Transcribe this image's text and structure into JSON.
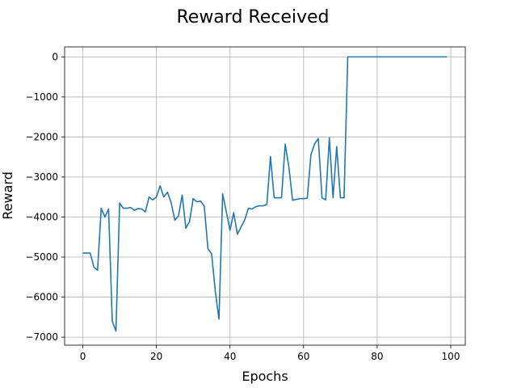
{
  "chart_data": {
    "type": "line",
    "title": "Reward Received",
    "xlabel": "Epochs",
    "ylabel": "Reward",
    "xlim": [
      -4.95,
      103.95
    ],
    "ylim": [
      -7200,
      250
    ],
    "xticks": [
      0,
      20,
      40,
      60,
      80,
      100
    ],
    "yticks": [
      0,
      -1000,
      -2000,
      -3000,
      -4000,
      -5000,
      -6000,
      -7000
    ],
    "xtick_labels": [
      "0",
      "20",
      "40",
      "60",
      "80",
      "100"
    ],
    "ytick_labels": [
      "0",
      "−1000",
      "−2000",
      "−3000",
      "−4000",
      "−5000",
      "−6000",
      "−7000"
    ],
    "grid": true,
    "series": [
      {
        "color": "#1f77b4",
        "x": [
          0,
          1,
          2,
          3,
          4,
          5,
          6,
          7,
          8,
          9,
          10,
          11,
          12,
          13,
          14,
          15,
          16,
          17,
          18,
          19,
          20,
          21,
          22,
          23,
          24,
          25,
          26,
          27,
          28,
          29,
          30,
          31,
          32,
          33,
          34,
          35,
          36,
          37,
          38,
          39,
          40,
          41,
          42,
          43,
          44,
          45,
          46,
          47,
          48,
          49,
          50,
          51,
          52,
          53,
          54,
          55,
          56,
          57,
          58,
          59,
          60,
          61,
          62,
          63,
          64,
          65,
          66,
          67,
          68,
          69,
          70,
          71,
          72,
          73,
          74,
          75,
          76,
          77,
          78,
          79,
          80,
          81,
          82,
          83,
          84,
          85,
          86,
          87,
          88,
          89,
          90,
          91,
          92,
          93,
          94,
          95,
          96,
          97,
          98,
          99
        ],
        "y": [
          -4900,
          -4900,
          -4900,
          -5250,
          -5330,
          -3780,
          -4000,
          -3800,
          -6600,
          -6850,
          -3650,
          -3780,
          -3780,
          -3760,
          -3830,
          -3790,
          -3800,
          -3870,
          -3500,
          -3570,
          -3500,
          -3220,
          -3500,
          -3380,
          -3640,
          -4080,
          -3970,
          -3450,
          -4280,
          -4110,
          -3540,
          -3620,
          -3600,
          -3730,
          -4790,
          -4920,
          -5850,
          -6550,
          -3420,
          -3870,
          -4330,
          -3890,
          -4430,
          -4250,
          -4070,
          -3780,
          -3800,
          -3740,
          -3720,
          -3720,
          -3690,
          -2490,
          -3520,
          -3520,
          -3520,
          -2180,
          -2750,
          -3580,
          -3560,
          -3540,
          -3540,
          -3530,
          -2440,
          -2170,
          -2040,
          -3520,
          -3570,
          -2020,
          -3520,
          -2240,
          -3520,
          -3520,
          0,
          0,
          0,
          0,
          0,
          0,
          0,
          0,
          0,
          0,
          0,
          0,
          0,
          0,
          0,
          0,
          0,
          0,
          0,
          0,
          0,
          0,
          0,
          0,
          0,
          0,
          0,
          0
        ]
      }
    ]
  }
}
